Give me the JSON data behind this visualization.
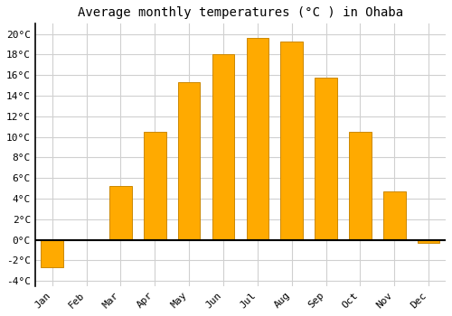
{
  "title": "Average monthly temperatures (°C ) in Ohaba",
  "months": [
    "Jan",
    "Feb",
    "Mar",
    "Apr",
    "May",
    "Jun",
    "Jul",
    "Aug",
    "Sep",
    "Oct",
    "Nov",
    "Dec"
  ],
  "values": [
    -2.7,
    0.0,
    5.2,
    10.5,
    15.3,
    18.0,
    19.6,
    19.3,
    15.8,
    10.5,
    4.7,
    -0.3
  ],
  "bar_color": "#FFAA00",
  "bar_edge_color": "#CC8800",
  "background_color": "#ffffff",
  "grid_color": "#d0d0d0",
  "ylim": [
    -4.5,
    21
  ],
  "yticks": [
    -4,
    -2,
    0,
    2,
    4,
    6,
    8,
    10,
    12,
    14,
    16,
    18,
    20
  ],
  "zero_line_color": "#000000",
  "title_fontsize": 10,
  "tick_fontsize": 8,
  "left_spine_color": "#000000"
}
